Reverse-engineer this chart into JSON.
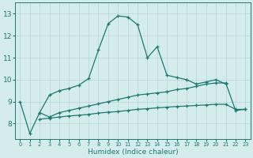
{
  "title": "",
  "xlabel": "Humidex (Indice chaleur)",
  "xlim": [
    -0.5,
    23.5
  ],
  "ylim": [
    7.3,
    13.5
  ],
  "yticks": [
    8,
    9,
    10,
    11,
    12,
    13
  ],
  "xticks": [
    0,
    1,
    2,
    3,
    4,
    5,
    6,
    7,
    8,
    9,
    10,
    11,
    12,
    13,
    14,
    15,
    16,
    17,
    18,
    19,
    20,
    21,
    22,
    23
  ],
  "bg_color": "#d4ecec",
  "line_color": "#1a7a6e",
  "grid_color": "#b8d4d4",
  "series_top_x": [
    0,
    1,
    2,
    3,
    4,
    5,
    6,
    7,
    8,
    9,
    10,
    11,
    12,
    13,
    14,
    15,
    16,
    17,
    18,
    19,
    20,
    21
  ],
  "series_top_y": [
    9.0,
    7.55,
    8.5,
    9.3,
    9.5,
    9.6,
    9.75,
    10.05,
    11.35,
    12.55,
    12.9,
    12.85,
    12.5,
    11.0,
    11.5,
    10.2,
    10.1,
    10.0,
    9.8,
    9.9,
    10.0,
    9.8
  ],
  "series_mid_x": [
    2,
    3,
    4,
    5,
    6,
    7,
    8,
    9,
    10,
    11,
    12,
    13,
    14,
    15,
    16,
    17,
    18,
    19,
    20,
    21,
    22,
    23
  ],
  "series_mid_y": [
    8.5,
    8.3,
    8.5,
    8.6,
    8.7,
    8.8,
    8.9,
    9.0,
    9.1,
    9.2,
    9.3,
    9.35,
    9.4,
    9.45,
    9.55,
    9.6,
    9.7,
    9.8,
    9.85,
    9.85,
    8.6,
    8.65
  ],
  "series_bot_x": [
    2,
    3,
    4,
    5,
    6,
    7,
    8,
    9,
    10,
    11,
    12,
    13,
    14,
    15,
    16,
    17,
    18,
    19,
    20,
    21,
    22,
    23
  ],
  "series_bot_y": [
    8.2,
    8.25,
    8.3,
    8.35,
    8.38,
    8.42,
    8.48,
    8.52,
    8.55,
    8.6,
    8.65,
    8.68,
    8.72,
    8.75,
    8.78,
    8.8,
    8.83,
    8.85,
    8.88,
    8.88,
    8.65,
    8.65
  ]
}
